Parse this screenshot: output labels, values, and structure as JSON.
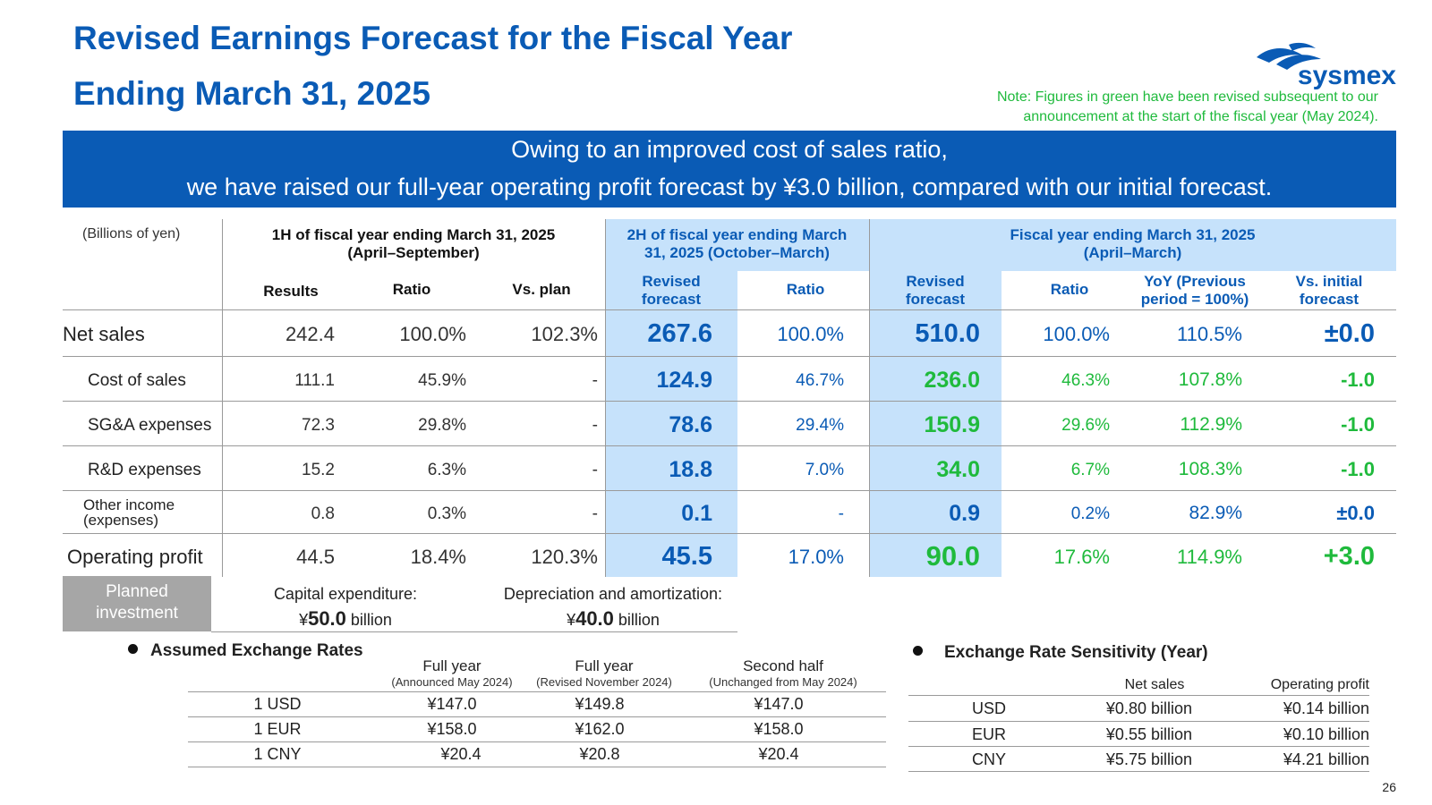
{
  "header": {
    "title_line1": "Revised Earnings Forecast for the Fiscal Year",
    "title_line2": "Ending March 31, 2025",
    "note_line1": "Note: Figures in green have been revised subsequent to our",
    "note_line2": "announcement at the start of the fiscal year (May 2024).",
    "logo_text": "sysmex"
  },
  "banner": {
    "line1": "Owing to an improved cost of sales ratio,",
    "line2": "we have raised our full-year operating profit forecast by ¥3.0 billion, compared with our initial forecast."
  },
  "table": {
    "unit_label": "(Billions of yen)",
    "group_1h": "1H of fiscal year ending March 31, 2025 (April–September)",
    "group_1h_l1": "1H of fiscal year ending March 31, 2025",
    "group_1h_l2": "(April–September)",
    "group_2h_l1": "2H of fiscal year ending March",
    "group_2h_l2": "31, 2025 (October–March)",
    "group_fy_l1": "Fiscal year ending March 31, 2025",
    "group_fy_l2": "(April–March)",
    "col_results": "Results",
    "col_ratio": "Ratio",
    "col_vsplan": "Vs. plan",
    "col_revised_l1": "Revised",
    "col_revised_l2": "forecast",
    "col_yoy_l1": "YoY (Previous",
    "col_yoy_l2": "period = 100%)",
    "col_vsinit_l1": "Vs. initial",
    "col_vsinit_l2": "forecast",
    "rows": [
      {
        "label": "Net sales",
        "h1_results": "242.4",
        "h1_ratio": "100.0%",
        "h1_vsplan": "102.3%",
        "h2_rev": "267.6",
        "h2_ratio": "100.0%",
        "fy_rev": "510.0",
        "fy_ratio": "100.0%",
        "fy_yoy": "110.5%",
        "fy_vsinit": "±0.0"
      },
      {
        "label": "Cost of sales",
        "h1_results": "111.1",
        "h1_ratio": "45.9%",
        "h1_vsplan": "-",
        "h2_rev": "124.9",
        "h2_ratio": "46.7%",
        "fy_rev": "236.0",
        "fy_ratio": "46.3%",
        "fy_yoy": "107.8%",
        "fy_vsinit": "-1.0"
      },
      {
        "label": "SG&A expenses",
        "h1_results": "72.3",
        "h1_ratio": "29.8%",
        "h1_vsplan": "-",
        "h2_rev": "78.6",
        "h2_ratio": "29.4%",
        "fy_rev": "150.9",
        "fy_ratio": "29.6%",
        "fy_yoy": "112.9%",
        "fy_vsinit": "-1.0"
      },
      {
        "label": "R&D expenses",
        "h1_results": "15.2",
        "h1_ratio": "6.3%",
        "h1_vsplan": "-",
        "h2_rev": "18.8",
        "h2_ratio": "7.0%",
        "fy_rev": "34.0",
        "fy_ratio": "6.7%",
        "fy_yoy": "108.3%",
        "fy_vsinit": "-1.0"
      },
      {
        "label_l1": "Other income",
        "label_l2": "(expenses)",
        "h1_results": "0.8",
        "h1_ratio": "0.3%",
        "h1_vsplan": "-",
        "h2_rev": "0.1",
        "h2_ratio": "-",
        "fy_rev": "0.9",
        "fy_ratio": "0.2%",
        "fy_yoy": "82.9%",
        "fy_vsinit": "±0.0"
      },
      {
        "label": "Operating profit",
        "h1_results": "44.5",
        "h1_ratio": "18.4%",
        "h1_vsplan": "120.3%",
        "h2_rev": "45.5",
        "h2_ratio": "17.0%",
        "fy_rev": "90.0",
        "fy_ratio": "17.6%",
        "fy_yoy": "114.9%",
        "fy_vsinit": "+3.0"
      }
    ]
  },
  "planned_investment": {
    "label_l1": "Planned",
    "label_l2": "investment",
    "capex_label": "Capital expenditure:",
    "capex_yen": "¥",
    "capex_value": "50.0",
    "capex_unit": " billion",
    "dep_label": "Depreciation and amortization:",
    "dep_yen": "¥",
    "dep_value": "40.0",
    "dep_unit": " billion"
  },
  "exchange_rates": {
    "title": "Assumed Exchange Rates",
    "col1_l1": "Full year",
    "col1_l2": "(Announced May 2024)",
    "col2_l1": "Full year",
    "col2_l2": "(Revised November 2024)",
    "col3_l1": "Second half",
    "col3_l2": "(Unchanged from May 2024)",
    "rows": [
      {
        "currency": "1 USD",
        "announced": "¥147.0",
        "revised": "¥149.8",
        "second_half": "¥147.0"
      },
      {
        "currency": "1 EUR",
        "announced": "¥158.0",
        "revised": "¥162.0",
        "second_half": "¥158.0"
      },
      {
        "currency": "1 CNY",
        "announced": "¥20.4",
        "revised": "¥20.8",
        "second_half": "¥20.4"
      }
    ]
  },
  "sensitivity": {
    "title": "Exchange Rate Sensitivity (Year)",
    "col_sales": "Net sales",
    "col_op": "Operating profit",
    "rows": [
      {
        "currency": "USD",
        "sales": "¥0.80 billion",
        "op": "¥0.14 billion"
      },
      {
        "currency": "EUR",
        "sales": "¥0.55 billion",
        "op": "¥0.10 billion"
      },
      {
        "currency": "CNY",
        "sales": "¥5.75 billion",
        "op": "¥4.21 billion"
      }
    ]
  },
  "colors": {
    "brand_blue": "#0a5bb5",
    "revised_green": "#1fba3c",
    "band_blue": "#c6e2fb"
  },
  "page_number": "26"
}
